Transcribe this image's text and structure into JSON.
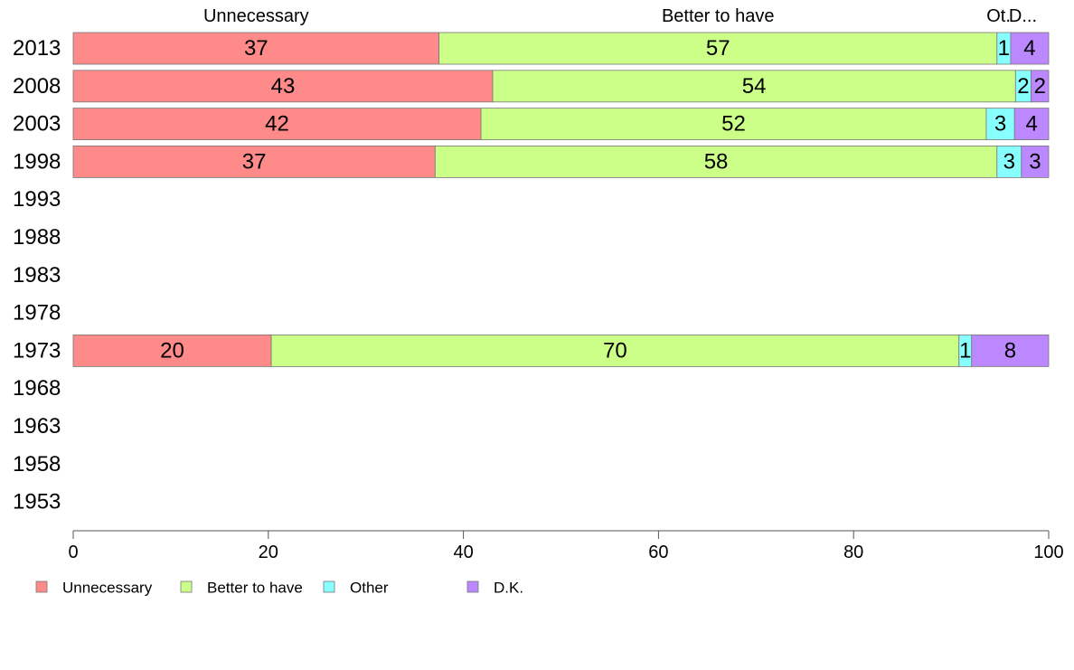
{
  "chart_data": {
    "type": "bar",
    "orientation": "horizontal",
    "stacked": true,
    "categories": [
      "2013",
      "2008",
      "2003",
      "1998",
      "1993",
      "1988",
      "1983",
      "1978",
      "1973",
      "1968",
      "1963",
      "1958",
      "1953"
    ],
    "series": [
      {
        "name": "Unnecessary",
        "color": "#ff8a8a",
        "top_label": "Unnecessary",
        "values": [
          37.5,
          43,
          41.8,
          37.1,
          null,
          null,
          null,
          null,
          20.3,
          null,
          null,
          null,
          null
        ],
        "labels": [
          "37",
          "43",
          "42",
          "37",
          null,
          null,
          null,
          null,
          "20",
          null,
          null,
          null,
          null
        ]
      },
      {
        "name": "Better to have",
        "color": "#ccff88",
        "top_label": "Better to have",
        "values": [
          57.2,
          53.6,
          51.8,
          57.6,
          null,
          null,
          null,
          null,
          70.5,
          null,
          null,
          null,
          null
        ],
        "labels": [
          "57",
          "54",
          "52",
          "58",
          null,
          null,
          null,
          null,
          "70",
          null,
          null,
          null,
          null
        ]
      },
      {
        "name": "Other",
        "color": "#88ffff",
        "top_label": "Ot.",
        "values": [
          1.4,
          1.6,
          2.9,
          2.5,
          null,
          null,
          null,
          null,
          1.3,
          null,
          null,
          null,
          null
        ],
        "labels": [
          "1",
          "2",
          "3",
          "3",
          null,
          null,
          null,
          null,
          "1",
          null,
          null,
          null,
          null
        ]
      },
      {
        "name": "D.K.",
        "color": "#bb88ff",
        "top_label": "D...",
        "values": [
          3.9,
          1.8,
          3.5,
          2.8,
          null,
          null,
          null,
          null,
          7.9,
          null,
          null,
          null,
          null
        ],
        "labels": [
          "4",
          "2",
          "4",
          "3",
          null,
          null,
          null,
          null,
          "8",
          null,
          null,
          null,
          null
        ]
      }
    ],
    "xlim": [
      0,
      100
    ],
    "xticks": [
      "0",
      "20",
      "40",
      "60",
      "80",
      "100"
    ],
    "grid": false,
    "legend_position": "bottom-left"
  }
}
